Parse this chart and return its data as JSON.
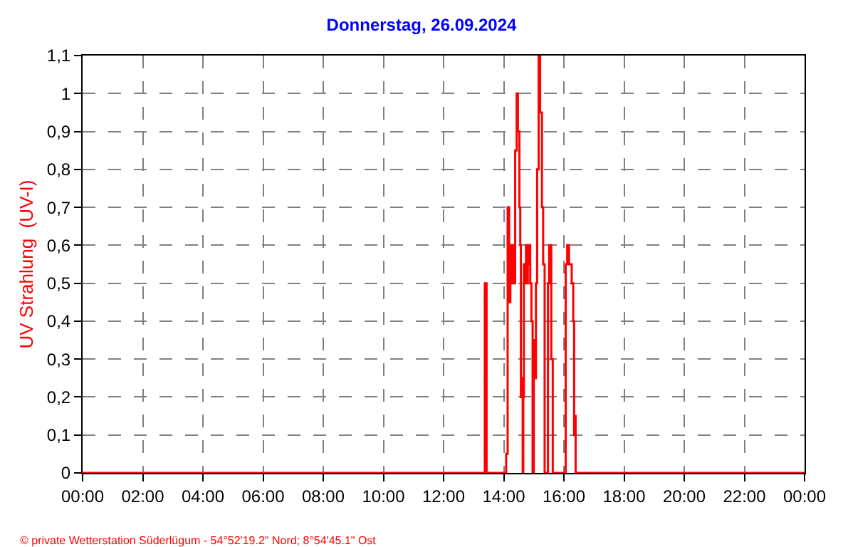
{
  "chart_data": {
    "type": "step",
    "title": "Donnerstag, 26.09.2024",
    "ylabel": "UV Strahlung  (UV-I)",
    "annotations": [
      "© private Wetterstation Süderlügum - 54°52'19.2\" Nord; 8°54'45.1\" Ost"
    ],
    "series": [
      {
        "color": "#ff0000",
        "x": [
          0,
          13.37,
          13.43,
          14.08,
          14.13,
          14.18,
          14.22,
          14.26,
          14.3,
          14.34,
          14.38,
          14.43,
          14.47,
          14.52,
          14.55,
          14.57,
          14.6,
          14.63,
          14.65,
          14.67,
          14.7,
          14.74,
          14.77,
          14.8,
          14.84,
          14.88,
          14.92,
          14.96,
          15.0,
          15.03,
          15.07,
          15.11,
          15.16,
          15.21,
          15.27,
          15.31,
          15.36,
          15.47,
          15.51,
          15.58,
          15.63,
          16.06,
          16.11,
          16.17,
          16.26,
          16.31,
          16.34,
          16.36,
          16.39,
          24
        ],
        "values": [
          0,
          0.5,
          0,
          0.05,
          0.7,
          0.45,
          0.6,
          0.5,
          0.6,
          0.5,
          0.85,
          1.0,
          0.9,
          0.7,
          0.6,
          0.2,
          0.25,
          0,
          0.2,
          0.55,
          0.5,
          0.6,
          0.5,
          0.55,
          0.6,
          0.5,
          0.4,
          0,
          0.35,
          0.25,
          0.5,
          0.8,
          1.1,
          0.95,
          0.7,
          0.55,
          0,
          0.5,
          0.6,
          0.3,
          0,
          0.55,
          0.6,
          0.55,
          0.5,
          0.4,
          0.1,
          0.15,
          0,
          0
        ]
      }
    ],
    "xlim": [
      0,
      24
    ],
    "xticks": [
      {
        "value": 0,
        "label": "00:00"
      },
      {
        "value": 2,
        "label": "02:00"
      },
      {
        "value": 4,
        "label": "04:00"
      },
      {
        "value": 6,
        "label": "06:00"
      },
      {
        "value": 8,
        "label": "08:00"
      },
      {
        "value": 10,
        "label": "10:00"
      },
      {
        "value": 12,
        "label": "12:00"
      },
      {
        "value": 14,
        "label": "14:00"
      },
      {
        "value": 16,
        "label": "16:00"
      },
      {
        "value": 18,
        "label": "18:00"
      },
      {
        "value": 20,
        "label": "20:00"
      },
      {
        "value": 22,
        "label": "22:00"
      },
      {
        "value": 24,
        "label": "00:00"
      }
    ],
    "ylim": [
      0,
      1.1
    ],
    "yticks": [
      0,
      {
        "value": 0.1,
        "label": "0,1"
      },
      {
        "value": 0.2,
        "label": "0,2"
      },
      {
        "value": 0.3,
        "label": "0,3"
      },
      {
        "value": 0.4,
        "label": "0,4"
      },
      {
        "value": 0.5,
        "label": "0,5"
      },
      {
        "value": 0.6,
        "label": "0,6"
      },
      {
        "value": 0.7,
        "label": "0,7"
      },
      {
        "value": 0.8,
        "label": "0,8"
      },
      {
        "value": 0.9,
        "label": "0,9"
      },
      1,
      {
        "value": 1.1,
        "label": "1,1"
      }
    ],
    "grid": true,
    "line_style": "solid",
    "marker": "none"
  }
}
